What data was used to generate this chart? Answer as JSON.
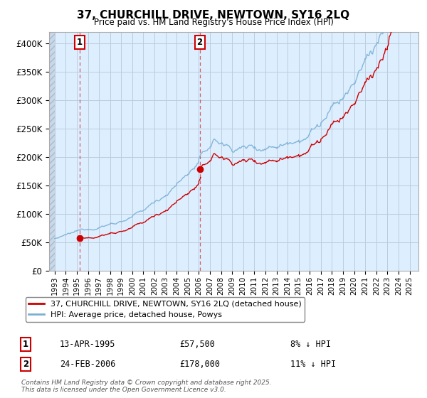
{
  "title": "37, CHURCHILL DRIVE, NEWTOWN, SY16 2LQ",
  "subtitle": "Price paid vs. HM Land Registry's House Price Index (HPI)",
  "legend_line1": "37, CHURCHILL DRIVE, NEWTOWN, SY16 2LQ (detached house)",
  "legend_line2": "HPI: Average price, detached house, Powys",
  "annotation1_label": "1",
  "annotation1_date": "13-APR-1995",
  "annotation1_price": 57500,
  "annotation1_hpi": "8% ↓ HPI",
  "annotation2_label": "2",
  "annotation2_date": "24-FEB-2006",
  "annotation2_price": 178000,
  "annotation2_hpi": "11% ↓ HPI",
  "sale1_x": 1995.25,
  "sale1_y": 57500,
  "sale2_x": 2006.08,
  "sale2_y": 178000,
  "sale_color": "#cc0000",
  "hpi_color": "#7ab0d4",
  "dashed_line_color": "#cc0000",
  "plot_bg_color": "#ddeeff",
  "background_color": "#ffffff",
  "grid_color": "#bbccdd",
  "footer_text": "Contains HM Land Registry data © Crown copyright and database right 2025.\nThis data is licensed under the Open Government Licence v3.0.",
  "ylim": [
    0,
    420000
  ],
  "xlim": [
    1992.5,
    2025.8
  ],
  "yticks": [
    0,
    50000,
    100000,
    150000,
    200000,
    250000,
    300000,
    350000,
    400000
  ],
  "ytick_labels": [
    "£0",
    "£50K",
    "£100K",
    "£150K",
    "£200K",
    "£250K",
    "£300K",
    "£350K",
    "£400K"
  ]
}
